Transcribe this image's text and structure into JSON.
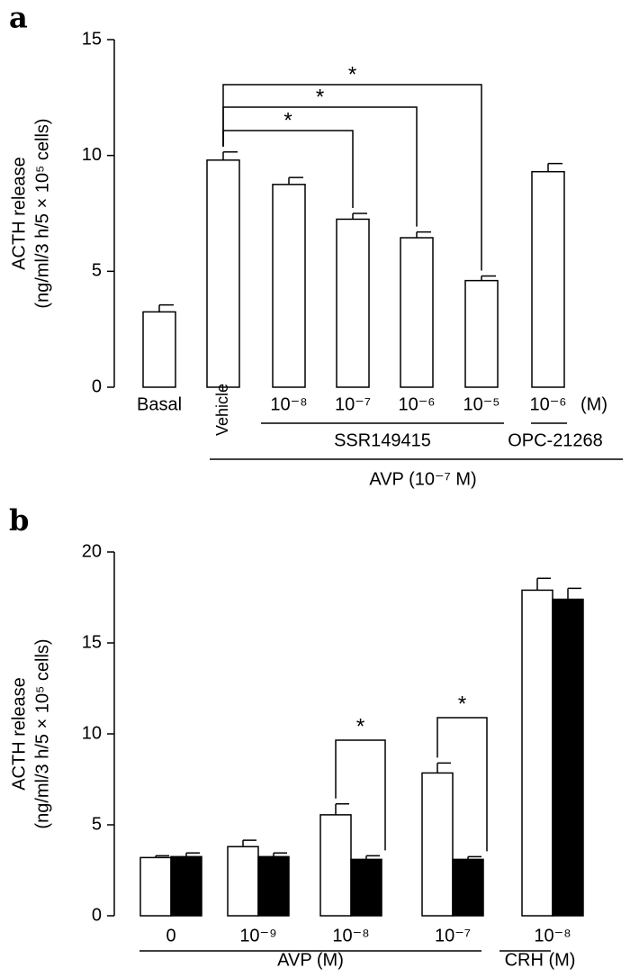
{
  "chart_data": [
    {
      "type": "bar",
      "panel": "a",
      "ylabel": "ACTH release",
      "ylabel2": "(ng/ml/3 h/5 × 10⁵ cells)",
      "categories": [
        "Basal",
        "Vehicle",
        "10⁻⁸",
        "10⁻⁷",
        "10⁻⁶",
        "10⁻⁵",
        "10⁻⁶"
      ],
      "values": [
        3.25,
        9.8,
        8.75,
        7.25,
        6.45,
        4.6,
        9.3
      ],
      "errors": [
        0.3,
        0.35,
        0.3,
        0.25,
        0.25,
        0.2,
        0.35
      ],
      "color": "#ffffff",
      "ylim": [
        0,
        15
      ],
      "yticks": [
        0,
        5,
        10,
        15
      ],
      "unit_label": "(M)",
      "group_labels": [
        "SSR149415",
        "OPC-21268",
        "AVP (10⁻⁷ M)"
      ],
      "annotations": [
        "*",
        "*",
        "*"
      ]
    },
    {
      "type": "grouped-bar",
      "panel": "b",
      "ylabel": "ACTH release",
      "ylabel2": "(ng/ml/3 h/5 × 10⁵ cells)",
      "categories": [
        "0",
        "10⁻⁹",
        "10⁻⁸",
        "10⁻⁷",
        "10⁻⁸"
      ],
      "series": [
        {
          "color": "#ffffff",
          "values": [
            3.2,
            3.8,
            5.55,
            7.85,
            17.9
          ],
          "errors": [
            0.1,
            0.35,
            0.6,
            0.55,
            0.65
          ]
        },
        {
          "color": "#000000",
          "values": [
            3.25,
            3.25,
            3.1,
            3.1,
            17.4
          ],
          "errors": [
            0.2,
            0.2,
            0.2,
            0.15,
            0.6
          ]
        }
      ],
      "ylim": [
        0,
        20
      ],
      "yticks": [
        0,
        5,
        10,
        15,
        20
      ],
      "group_labels": [
        "AVP (M)",
        "CRH (M)"
      ],
      "annotations": [
        "*",
        "*"
      ]
    }
  ]
}
